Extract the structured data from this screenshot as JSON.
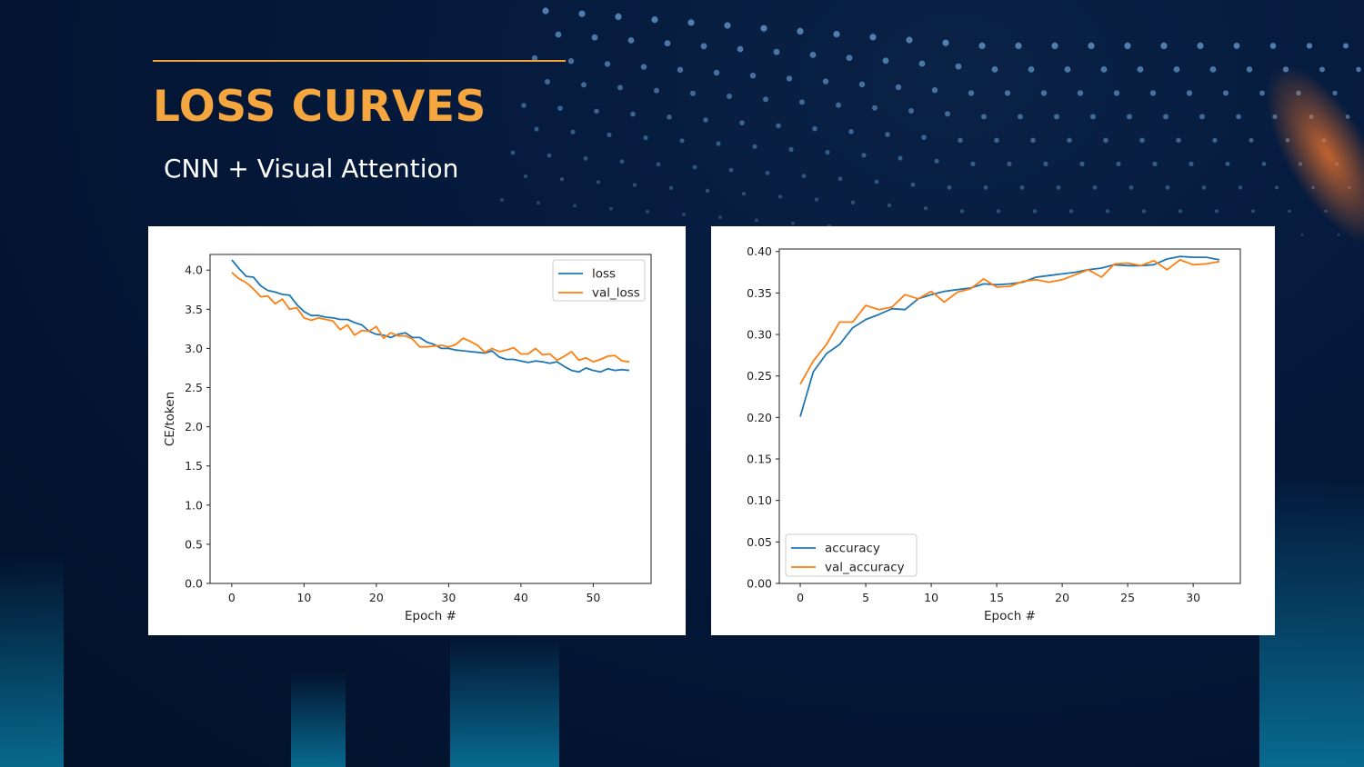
{
  "slide": {
    "title": "LOSS CURVES",
    "subtitle": "CNN + Visual Attention",
    "colors": {
      "background": "#03152f",
      "accent": "#f6a63e",
      "subtitle": "#ffffff",
      "dots": "#5d8fc2"
    }
  },
  "chart_data": [
    {
      "type": "line",
      "title": "",
      "xlabel": "Epoch #",
      "ylabel": "CE/token",
      "xlim": [
        -3,
        58
      ],
      "ylim": [
        0,
        4.2
      ],
      "xticks": [
        0,
        10,
        20,
        30,
        40,
        50
      ],
      "yticks": [
        0.0,
        0.5,
        1.0,
        1.5,
        2.0,
        2.5,
        3.0,
        3.5,
        4.0
      ],
      "ytick_labels": [
        "0.0",
        "0.5",
        "1.0",
        "1.5",
        "2.0",
        "2.5",
        "3.0",
        "3.5",
        "4.0"
      ],
      "grid": false,
      "legend_position": "upper right",
      "x": [
        0,
        1,
        2,
        3,
        4,
        5,
        6,
        7,
        8,
        9,
        10,
        11,
        12,
        13,
        14,
        15,
        16,
        17,
        18,
        19,
        20,
        21,
        22,
        23,
        24,
        25,
        26,
        27,
        28,
        29,
        30,
        31,
        32,
        33,
        34,
        35,
        36,
        37,
        38,
        39,
        40,
        41,
        42,
        43,
        44,
        45,
        46,
        47,
        48,
        49,
        50,
        51,
        52,
        53,
        54,
        55
      ],
      "series": [
        {
          "name": "loss",
          "color": "#1f77b4",
          "values": [
            4.13,
            4.02,
            3.92,
            3.91,
            3.8,
            3.74,
            3.72,
            3.69,
            3.68,
            3.56,
            3.47,
            3.42,
            3.42,
            3.4,
            3.39,
            3.37,
            3.37,
            3.33,
            3.3,
            3.22,
            3.18,
            3.17,
            3.14,
            3.18,
            3.2,
            3.14,
            3.14,
            3.08,
            3.05,
            3.0,
            3.0,
            2.98,
            2.97,
            2.96,
            2.95,
            2.94,
            2.97,
            2.89,
            2.86,
            2.86,
            2.84,
            2.82,
            2.84,
            2.83,
            2.81,
            2.83,
            2.77,
            2.72,
            2.7,
            2.75,
            2.72,
            2.7,
            2.74,
            2.72,
            2.73,
            2.72
          ]
        },
        {
          "name": "val_loss",
          "color": "#ff7f0e",
          "values": [
            3.97,
            3.89,
            3.84,
            3.76,
            3.66,
            3.67,
            3.57,
            3.63,
            3.5,
            3.52,
            3.39,
            3.36,
            3.39,
            3.37,
            3.35,
            3.24,
            3.3,
            3.17,
            3.23,
            3.22,
            3.28,
            3.13,
            3.2,
            3.16,
            3.16,
            3.12,
            3.02,
            3.02,
            3.03,
            3.04,
            3.02,
            3.05,
            3.13,
            3.09,
            3.04,
            2.95,
            3.0,
            2.96,
            2.98,
            3.01,
            2.93,
            2.93,
            3.0,
            2.92,
            2.93,
            2.85,
            2.9,
            2.96,
            2.85,
            2.88,
            2.83,
            2.86,
            2.9,
            2.91,
            2.84,
            2.83
          ]
        }
      ]
    },
    {
      "type": "line",
      "title": "",
      "xlabel": "Epoch #",
      "ylabel": "",
      "xlim": [
        -1.6,
        33.6
      ],
      "ylim": [
        0.0,
        0.403
      ],
      "xticks": [
        0,
        5,
        10,
        15,
        20,
        25,
        30
      ],
      "yticks": [
        0.0,
        0.05,
        0.1,
        0.15,
        0.2,
        0.25,
        0.3,
        0.35,
        0.4
      ],
      "ytick_labels": [
        "0.00",
        "0.05",
        "0.10",
        "0.15",
        "0.20",
        "0.25",
        "0.30",
        "0.35",
        "0.40"
      ],
      "grid": false,
      "legend_position": "lower left",
      "x": [
        0,
        1,
        2,
        3,
        4,
        5,
        6,
        7,
        8,
        9,
        10,
        11,
        12,
        13,
        14,
        15,
        16,
        17,
        18,
        19,
        20,
        21,
        22,
        23,
        24,
        25,
        26,
        27,
        28,
        29,
        30,
        31,
        32
      ],
      "series": [
        {
          "name": "accuracy",
          "color": "#1f77b4",
          "values": [
            0.201,
            0.255,
            0.277,
            0.288,
            0.308,
            0.318,
            0.324,
            0.331,
            0.33,
            0.343,
            0.348,
            0.352,
            0.354,
            0.356,
            0.361,
            0.36,
            0.361,
            0.363,
            0.369,
            0.371,
            0.373,
            0.375,
            0.378,
            0.38,
            0.384,
            0.383,
            0.383,
            0.384,
            0.391,
            0.394,
            0.393,
            0.393,
            0.39
          ]
        },
        {
          "name": "val_accuracy",
          "color": "#ff7f0e",
          "values": [
            0.24,
            0.268,
            0.288,
            0.315,
            0.315,
            0.335,
            0.33,
            0.333,
            0.348,
            0.343,
            0.352,
            0.339,
            0.351,
            0.355,
            0.367,
            0.357,
            0.358,
            0.364,
            0.366,
            0.363,
            0.366,
            0.372,
            0.378,
            0.369,
            0.385,
            0.386,
            0.383,
            0.389,
            0.378,
            0.39,
            0.384,
            0.385,
            0.388
          ]
        }
      ]
    }
  ]
}
